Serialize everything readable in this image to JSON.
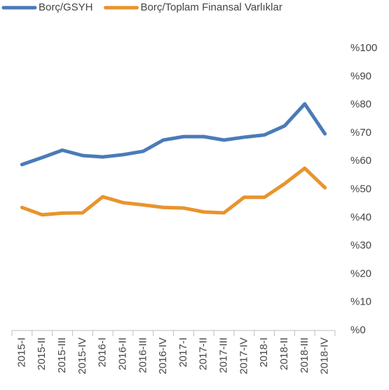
{
  "chart_data": {
    "type": "line",
    "categories": [
      "2015-I",
      "2015-II",
      "2015-III",
      "2015-IV",
      "2016-I",
      "2016-II",
      "2016-III",
      "2016-IV",
      "2017-I",
      "2017-II",
      "2017-III",
      "2017-IV",
      "2018-I",
      "2018-II",
      "2018-III",
      "2018-IV"
    ],
    "series": [
      {
        "name": "Borç/GSYH",
        "color": "#4a7bb8",
        "values": [
          58.8,
          61.3,
          63.9,
          62.0,
          61.5,
          62.3,
          63.5,
          67.5,
          68.7,
          68.7,
          67.5,
          68.5,
          69.3,
          72.5,
          80.3,
          69.7
        ]
      },
      {
        "name": "Borç/Toplam Finansal Varlıklar",
        "color": "#e8942e",
        "values": [
          43.6,
          41.0,
          41.6,
          41.7,
          47.4,
          45.3,
          44.5,
          43.6,
          43.4,
          42.0,
          41.7,
          47.2,
          47.2,
          52.0,
          57.5,
          50.6
        ]
      }
    ],
    "ylim": [
      0,
      100
    ],
    "yticks": [
      {
        "value": 0,
        "label": "%0"
      },
      {
        "value": 10,
        "label": "%10"
      },
      {
        "value": 20,
        "label": "%20"
      },
      {
        "value": 30,
        "label": "%30"
      },
      {
        "value": 40,
        "label": "%40"
      },
      {
        "value": 50,
        "label": "%50"
      },
      {
        "value": 60,
        "label": "%60"
      },
      {
        "value": 70,
        "label": "%70"
      },
      {
        "value": 80,
        "label": "%80"
      },
      {
        "value": 90,
        "label": "%90"
      },
      {
        "value": 100,
        "label": "%100"
      }
    ],
    "y_axis_side": "right",
    "legend": "top"
  }
}
